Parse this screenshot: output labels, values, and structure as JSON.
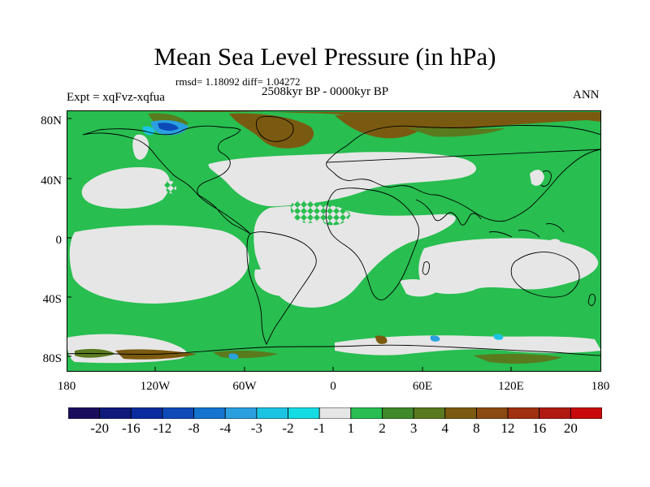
{
  "header": {
    "title": "Mean Sea Level Pressure (in hPa)",
    "stats": "rmsd= 1.18092 diff= 1.04272",
    "experiment": "Expt = xqFvz-xqfua",
    "period": "2508kyr BP - 0000kyr BP",
    "season": "ANN"
  },
  "map": {
    "projection": "cylindrical equidistant",
    "y_tick_labels": [
      "80N",
      "40N",
      "0",
      "40S",
      "80S"
    ],
    "x_tick_labels": [
      "180",
      "120W",
      "60W",
      "0",
      "60E",
      "120E",
      "180"
    ]
  },
  "colorbar": {
    "colors": [
      "#1b0d5e",
      "#101a7c",
      "#0a2c9e",
      "#0c4ab8",
      "#1474d0",
      "#2aa0e0",
      "#1cc4e4",
      "#14dce4",
      "#e6e6e6",
      "#28be50",
      "#3f8a2a",
      "#5a7a1e",
      "#7a5a10",
      "#8a4a10",
      "#a03010",
      "#b01a10",
      "#c80a0a"
    ],
    "labels": [
      "-20",
      "-16",
      "-12",
      "-8",
      "-4",
      "-3",
      "-2",
      "-1",
      "1",
      "2",
      "3",
      "4",
      "8",
      "12",
      "16",
      "20"
    ]
  },
  "colors": {
    "neutral": "#e6e6e6",
    "positive_weak": "#28be50",
    "positive_mid": "#3f8a2a",
    "positive_strong": "#7a5a10",
    "negative_weak": "#2aa0e0",
    "negative_mid": "#0c4ab8",
    "coastline": "#000000"
  }
}
